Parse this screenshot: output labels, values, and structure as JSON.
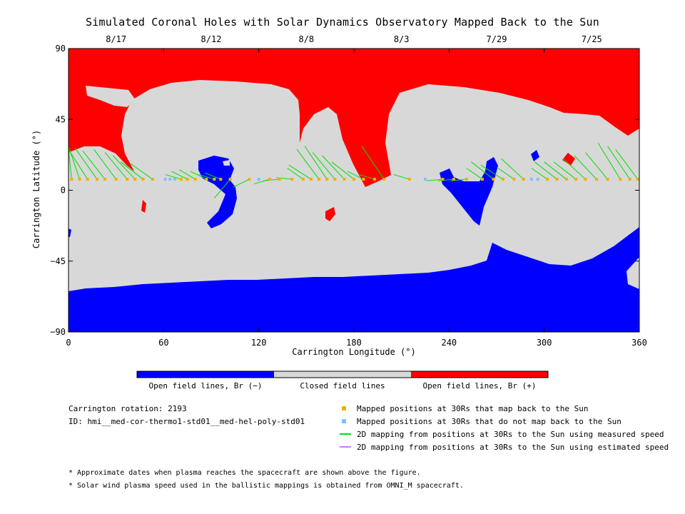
{
  "title": "Simulated Coronal Holes with Solar Dynamics Observatory Mapped Back to the Sun",
  "chart_data": {
    "type": "map",
    "xlabel": "Carrington Longitude (°)",
    "ylabel": "Carrington Latitude (°)",
    "xlim": [
      0,
      360
    ],
    "ylim": [
      -90,
      90
    ],
    "x_ticks": [
      "0",
      "60",
      "120",
      "180",
      "240",
      "300",
      "360"
    ],
    "y_ticks": [
      "90",
      "45",
      "0",
      "−45",
      "−90"
    ],
    "top_dates": [
      {
        "label": "8/17",
        "lon": 30
      },
      {
        "label": "8/12",
        "lon": 90
      },
      {
        "label": "8/8",
        "lon": 150
      },
      {
        "label": "8/3",
        "lon": 210
      },
      {
        "label": "7/29",
        "lon": 270
      },
      {
        "label": "7/25",
        "lon": 330
      }
    ],
    "mapped_points": [
      {
        "lon": 2,
        "lat": 7,
        "maps_back": true,
        "sun_lat": 26
      },
      {
        "lon": 7,
        "lat": 7,
        "maps_back": true,
        "sun_lat": 28
      },
      {
        "lon": 12,
        "lat": 7,
        "maps_back": true,
        "sun_lat": 26
      },
      {
        "lon": 18,
        "lat": 7,
        "maps_back": true,
        "sun_lat": 27
      },
      {
        "lon": 23,
        "lat": 7,
        "maps_back": true,
        "sun_lat": 25
      },
      {
        "lon": 30,
        "lat": 7,
        "maps_back": true,
        "sun_lat": 26
      },
      {
        "lon": 37,
        "lat": 7,
        "maps_back": true,
        "sun_lat": 24
      },
      {
        "lon": 42,
        "lat": 7,
        "maps_back": true,
        "sun_lat": 22
      },
      {
        "lon": 47,
        "lat": 7,
        "maps_back": true,
        "sun_lat": 18
      },
      {
        "lon": 53,
        "lat": 7,
        "maps_back": true,
        "sun_lat": 17
      },
      {
        "lon": 61,
        "lat": 7,
        "maps_back": false
      },
      {
        "lon": 64,
        "lat": 7,
        "maps_back": false
      },
      {
        "lon": 67,
        "lat": 7,
        "maps_back": false
      },
      {
        "lon": 71,
        "lat": 7,
        "maps_back": true,
        "sun_lat": 10
      },
      {
        "lon": 75,
        "lat": 7,
        "maps_back": true,
        "sun_lat": 12
      },
      {
        "lon": 80,
        "lat": 7,
        "maps_back": true,
        "sun_lat": 13
      },
      {
        "lon": 87,
        "lat": 7,
        "maps_back": true,
        "sun_lat": 12
      },
      {
        "lon": 92,
        "lat": 7,
        "maps_back": true,
        "sun_lat": 10
      },
      {
        "lon": 96,
        "lat": 7,
        "maps_back": true,
        "sun_lat": 11
      },
      {
        "lon": 102,
        "lat": 7,
        "maps_back": true,
        "sun_lat": -5
      },
      {
        "lon": 114,
        "lat": 7,
        "maps_back": true,
        "sun_lat": 2
      },
      {
        "lon": 120,
        "lat": 7,
        "maps_back": false
      },
      {
        "lon": 127,
        "lat": 7,
        "maps_back": true,
        "sun_lat": 4
      },
      {
        "lon": 133,
        "lat": 7,
        "maps_back": true,
        "sun_lat": 6
      },
      {
        "lon": 141,
        "lat": 7,
        "maps_back": true,
        "sun_lat": 8
      },
      {
        "lon": 148,
        "lat": 7,
        "maps_back": true,
        "sun_lat": 14
      },
      {
        "lon": 153,
        "lat": 7,
        "maps_back": true,
        "sun_lat": 16
      },
      {
        "lon": 158,
        "lat": 7,
        "maps_back": true,
        "sun_lat": 26
      },
      {
        "lon": 163,
        "lat": 7,
        "maps_back": true,
        "sun_lat": 28
      },
      {
        "lon": 168,
        "lat": 7,
        "maps_back": true,
        "sun_lat": 24
      },
      {
        "lon": 174,
        "lat": 7,
        "maps_back": true,
        "sun_lat": 22
      },
      {
        "lon": 180,
        "lat": 7,
        "maps_back": true,
        "sun_lat": 18
      },
      {
        "lon": 186,
        "lat": 7,
        "maps_back": true,
        "sun_lat": 12
      },
      {
        "lon": 193,
        "lat": 7,
        "maps_back": true,
        "sun_lat": 10
      },
      {
        "lon": 199,
        "lat": 7,
        "maps_back": true,
        "sun_lat": 28
      },
      {
        "lon": 215,
        "lat": 7,
        "maps_back": true,
        "sun_lat": 10
      },
      {
        "lon": 225,
        "lat": 7,
        "maps_back": false
      },
      {
        "lon": 236,
        "lat": 7,
        "maps_back": true,
        "sun_lat": 6
      },
      {
        "lon": 243,
        "lat": 7,
        "maps_back": true,
        "sun_lat": 6
      },
      {
        "lon": 251,
        "lat": 7,
        "maps_back": true,
        "sun_lat": 6
      },
      {
        "lon": 261,
        "lat": 7,
        "maps_back": true,
        "sun_lat": 14
      },
      {
        "lon": 268,
        "lat": 7,
        "maps_back": true,
        "sun_lat": 18
      },
      {
        "lon": 274,
        "lat": 7,
        "maps_back": true,
        "sun_lat": 16
      },
      {
        "lon": 281,
        "lat": 7,
        "maps_back": true,
        "sun_lat": 14
      },
      {
        "lon": 287,
        "lat": 7,
        "maps_back": true,
        "sun_lat": 20
      },
      {
        "lon": 292,
        "lat": 7,
        "maps_back": false
      },
      {
        "lon": 296,
        "lat": 7,
        "maps_back": false
      },
      {
        "lon": 302,
        "lat": 7,
        "maps_back": true,
        "sun_lat": 14
      },
      {
        "lon": 308,
        "lat": 7,
        "maps_back": true,
        "sun_lat": 18
      },
      {
        "lon": 314,
        "lat": 7,
        "maps_back": true,
        "sun_lat": 18
      },
      {
        "lon": 320,
        "lat": 7,
        "maps_back": true,
        "sun_lat": 18
      },
      {
        "lon": 326,
        "lat": 7,
        "maps_back": true,
        "sun_lat": 20
      },
      {
        "lon": 333,
        "lat": 7,
        "maps_back": true,
        "sun_lat": 22
      },
      {
        "lon": 340,
        "lat": 7,
        "maps_back": true,
        "sun_lat": 24
      },
      {
        "lon": 348,
        "lat": 7,
        "maps_back": true,
        "sun_lat": 30
      },
      {
        "lon": 354,
        "lat": 7,
        "maps_back": true,
        "sun_lat": 28
      },
      {
        "lon": 359,
        "lat": 7,
        "maps_back": true,
        "sun_lat": 26
      }
    ]
  },
  "colorbar": {
    "labels": [
      "Open field lines, Br (−)",
      "Closed field lines",
      "Open field lines, Br (+)"
    ],
    "colors": [
      "#0000ff",
      "#d8d8d8",
      "#ff0000"
    ]
  },
  "info": {
    "rotation": "Carrington rotation: 2193",
    "id": "ID: hmi__med-cor-thermo1-std01__med-hel-poly-std01"
  },
  "legend": [
    {
      "label": "Mapped positions at 30Rs that map back to the Sun",
      "kind": "square",
      "color": "#f0b000"
    },
    {
      "label": "Mapped positions at 30Rs that do not map back to the Sun",
      "kind": "square",
      "color": "#80c0ff"
    },
    {
      "label": "2D mapping from positions at 30Rs to the Sun using measured speed",
      "kind": "line",
      "color": "#00e000"
    },
    {
      "label": "2D mapping from positions at 30Rs to the Sun using estimated speed",
      "kind": "line",
      "color": "#c080ff"
    }
  ],
  "notes": [
    "* Approximate dates when plasma reaches the spacecraft are shown above the figure.",
    "* Solar wind plasma speed used in the ballistic mappings is obtained from OMNI_M spacecraft."
  ]
}
